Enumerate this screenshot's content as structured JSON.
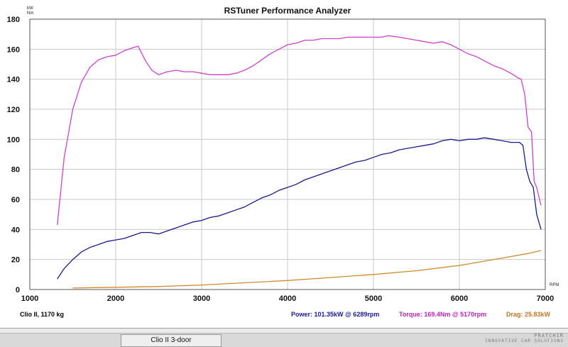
{
  "app": {
    "title": "RSTuner Performance Analyzer"
  },
  "chart_data": {
    "type": "line",
    "title": "RSTuner Performance Analyzer",
    "xlabel": "RPM",
    "ylabel_top": "kW",
    "ylabel_bottom": "Nm",
    "xlim": [
      1000,
      7000
    ],
    "ylim": [
      0,
      180
    ],
    "x_ticks": [
      1000,
      2000,
      3000,
      4000,
      5000,
      6000,
      7000
    ],
    "y_ticks": [
      0,
      20,
      40,
      60,
      80,
      100,
      120,
      140,
      160,
      180
    ],
    "grid": true,
    "series": [
      {
        "name": "Torque",
        "color": "#d040d0",
        "points": [
          [
            1320,
            43
          ],
          [
            1400,
            88
          ],
          [
            1500,
            120
          ],
          [
            1600,
            138
          ],
          [
            1700,
            148
          ],
          [
            1800,
            153
          ],
          [
            1900,
            155
          ],
          [
            2000,
            156
          ],
          [
            2100,
            159
          ],
          [
            2200,
            161
          ],
          [
            2260,
            162
          ],
          [
            2350,
            152
          ],
          [
            2420,
            146
          ],
          [
            2500,
            143
          ],
          [
            2600,
            145
          ],
          [
            2700,
            146
          ],
          [
            2800,
            145
          ],
          [
            2900,
            145
          ],
          [
            3000,
            144
          ],
          [
            3100,
            143
          ],
          [
            3200,
            143
          ],
          [
            3300,
            143
          ],
          [
            3400,
            144
          ],
          [
            3500,
            146
          ],
          [
            3600,
            149
          ],
          [
            3700,
            153
          ],
          [
            3800,
            157
          ],
          [
            3900,
            160
          ],
          [
            4000,
            163
          ],
          [
            4100,
            164
          ],
          [
            4200,
            166
          ],
          [
            4300,
            166
          ],
          [
            4400,
            167
          ],
          [
            4500,
            167
          ],
          [
            4600,
            167
          ],
          [
            4700,
            168
          ],
          [
            4800,
            168
          ],
          [
            4900,
            168
          ],
          [
            5000,
            168
          ],
          [
            5100,
            168
          ],
          [
            5170,
            169
          ],
          [
            5300,
            168
          ],
          [
            5400,
            167
          ],
          [
            5500,
            166
          ],
          [
            5600,
            165
          ],
          [
            5700,
            164
          ],
          [
            5800,
            165
          ],
          [
            5900,
            163
          ],
          [
            6000,
            160
          ],
          [
            6100,
            157
          ],
          [
            6200,
            155
          ],
          [
            6300,
            152
          ],
          [
            6400,
            149
          ],
          [
            6500,
            147
          ],
          [
            6600,
            144
          ],
          [
            6680,
            141
          ],
          [
            6720,
            140
          ],
          [
            6760,
            130
          ],
          [
            6800,
            108
          ],
          [
            6840,
            105
          ],
          [
            6870,
            72
          ],
          [
            6900,
            68
          ],
          [
            6950,
            56
          ]
        ]
      },
      {
        "name": "Power",
        "color": "#1a1a8c",
        "points": [
          [
            1320,
            7
          ],
          [
            1400,
            14
          ],
          [
            1500,
            20
          ],
          [
            1600,
            25
          ],
          [
            1700,
            28
          ],
          [
            1800,
            30
          ],
          [
            1900,
            32
          ],
          [
            2000,
            33
          ],
          [
            2100,
            34
          ],
          [
            2200,
            36
          ],
          [
            2300,
            38
          ],
          [
            2400,
            38
          ],
          [
            2500,
            37
          ],
          [
            2600,
            39
          ],
          [
            2700,
            41
          ],
          [
            2800,
            43
          ],
          [
            2900,
            45
          ],
          [
            3000,
            46
          ],
          [
            3100,
            48
          ],
          [
            3200,
            49
          ],
          [
            3300,
            51
          ],
          [
            3400,
            53
          ],
          [
            3500,
            55
          ],
          [
            3600,
            58
          ],
          [
            3700,
            61
          ],
          [
            3800,
            63
          ],
          [
            3900,
            66
          ],
          [
            4000,
            68
          ],
          [
            4100,
            70
          ],
          [
            4200,
            73
          ],
          [
            4300,
            75
          ],
          [
            4400,
            77
          ],
          [
            4500,
            79
          ],
          [
            4600,
            81
          ],
          [
            4700,
            83
          ],
          [
            4800,
            85
          ],
          [
            4900,
            86
          ],
          [
            5000,
            88
          ],
          [
            5100,
            90
          ],
          [
            5200,
            91
          ],
          [
            5300,
            93
          ],
          [
            5400,
            94
          ],
          [
            5500,
            95
          ],
          [
            5600,
            96
          ],
          [
            5700,
            97
          ],
          [
            5800,
            99
          ],
          [
            5900,
            100
          ],
          [
            6000,
            99
          ],
          [
            6100,
            100
          ],
          [
            6200,
            100
          ],
          [
            6289,
            101
          ],
          [
            6400,
            100
          ],
          [
            6500,
            99
          ],
          [
            6600,
            98
          ],
          [
            6700,
            98
          ],
          [
            6740,
            96
          ],
          [
            6780,
            80
          ],
          [
            6820,
            72
          ],
          [
            6860,
            68
          ],
          [
            6900,
            50
          ],
          [
            6950,
            40
          ]
        ]
      },
      {
        "name": "Drag",
        "color": "#d08c30",
        "points": [
          [
            1500,
            1
          ],
          [
            2000,
            1.5
          ],
          [
            2500,
            2
          ],
          [
            3000,
            3
          ],
          [
            3500,
            4.5
          ],
          [
            4000,
            6
          ],
          [
            4500,
            8
          ],
          [
            5000,
            10
          ],
          [
            5500,
            12.5
          ],
          [
            6000,
            16
          ],
          [
            6500,
            21
          ],
          [
            6800,
            24
          ],
          [
            6950,
            26
          ]
        ]
      }
    ]
  },
  "footer": {
    "vehicle": "Clio II, 1170 kg",
    "power": "Power: 101.35kW @ 6289rpm",
    "torque": "Torque: 169.4Nm @ 5170rpm",
    "drag": "Drag: 25.83kW",
    "colors": {
      "vehicle": "#000000",
      "power": "#1a1a9a",
      "torque": "#c020c0",
      "drag": "#c07820"
    }
  },
  "statusbar": {
    "tab_label": "Clio II 3-door",
    "brand_line1": "PRATCHIR",
    "brand_line2": "INNOVATIVE CAR SOLUTIONS"
  }
}
